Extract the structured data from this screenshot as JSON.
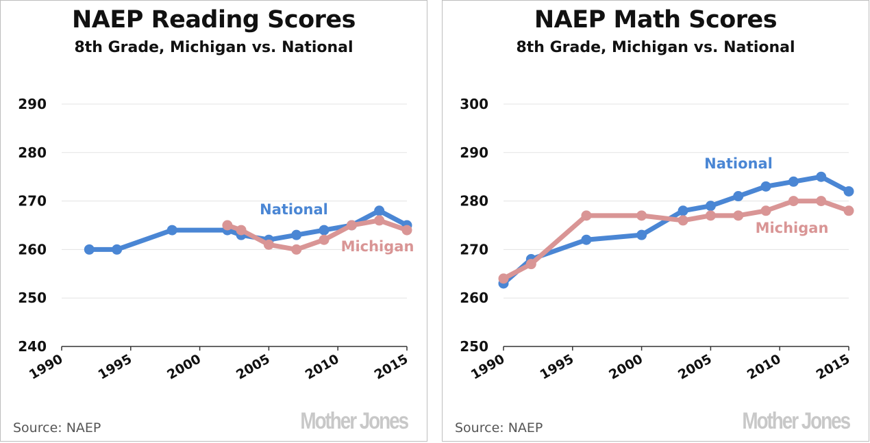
{
  "colors": {
    "national": "#4a86d4",
    "michigan": "#d99595",
    "grid": "#e3e3e3",
    "axis": "#333333",
    "logo": "#c8c8c8"
  },
  "chart_data": [
    {
      "type": "line",
      "title": "NAEP Reading Scores",
      "subtitle": "8th Grade, Michigan vs. National",
      "xlim": [
        1990,
        2015
      ],
      "ylim": [
        240,
        290
      ],
      "x_ticks": [
        1990,
        1995,
        2000,
        2005,
        2010,
        2015
      ],
      "y_ticks": [
        240,
        250,
        260,
        270,
        280,
        290
      ],
      "grid": true,
      "series": [
        {
          "name": "National",
          "color": "#4a86d4",
          "x": [
            1992,
            1994,
            1998,
            2002,
            2003,
            2005,
            2007,
            2009,
            2011,
            2013,
            2015
          ],
          "y": [
            260,
            260,
            264,
            264,
            263,
            262,
            263,
            264,
            265,
            268,
            265
          ]
        },
        {
          "name": "Michigan",
          "color": "#d99595",
          "x": [
            2002,
            2003,
            2005,
            2007,
            2009,
            2011,
            2013,
            2015
          ],
          "y": [
            265,
            264,
            261,
            260,
            262,
            265,
            266,
            264
          ]
        }
      ],
      "source": "Source:  NAEP",
      "logo": "Mother Jones"
    },
    {
      "type": "line",
      "title": "NAEP Math Scores",
      "subtitle": "8th Grade, Michigan vs. National",
      "xlim": [
        1990,
        2015
      ],
      "ylim": [
        250,
        300
      ],
      "x_ticks": [
        1990,
        1995,
        2000,
        2005,
        2010,
        2015
      ],
      "y_ticks": [
        250,
        260,
        270,
        280,
        290,
        300
      ],
      "grid": true,
      "series": [
        {
          "name": "National",
          "color": "#4a86d4",
          "x": [
            1990,
            1992,
            1996,
            2000,
            2003,
            2005,
            2007,
            2009,
            2011,
            2013,
            2015
          ],
          "y": [
            263,
            268,
            272,
            273,
            278,
            279,
            281,
            283,
            284,
            285,
            282
          ]
        },
        {
          "name": "Michigan",
          "color": "#d99595",
          "x": [
            1990,
            1992,
            1996,
            2000,
            2003,
            2005,
            2007,
            2009,
            2011,
            2013,
            2015
          ],
          "y": [
            264,
            267,
            277,
            277,
            276,
            277,
            277,
            278,
            280,
            280,
            278
          ]
        }
      ],
      "source": "Source:  NAEP",
      "logo": "Mother Jones"
    }
  ]
}
